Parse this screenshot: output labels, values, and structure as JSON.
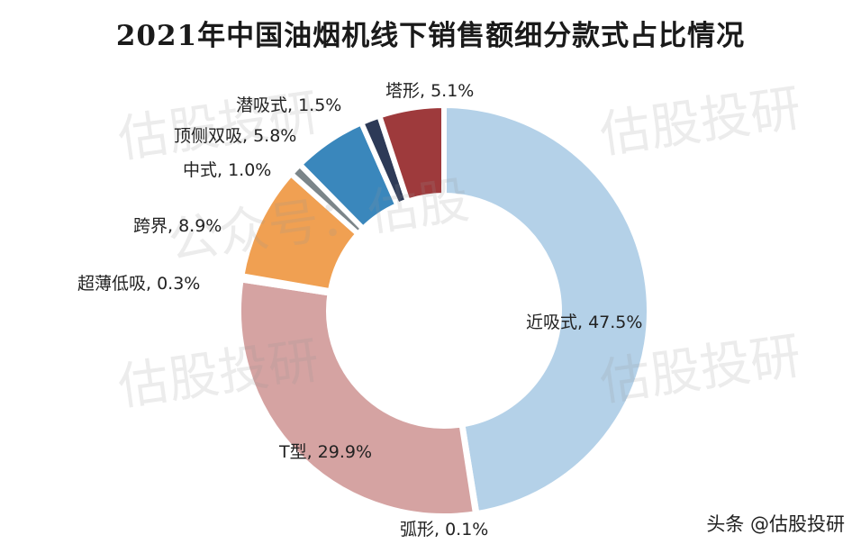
{
  "title": "2021年中国油烟机线下销售额细分款式占比情况",
  "credit": "头条 @估股投研",
  "watermarks": [
    "估股投研",
    "估股投研",
    "估股投研",
    "估股投研",
    "公众号：估股"
  ],
  "labels": {
    "l0": "近吸式, 47.5%",
    "l1": "弧形, 0.1%",
    "l2": "T型, 29.9%",
    "l3": "超薄低吸, 0.3%",
    "l4": "跨界, 8.9%",
    "l5": "中式, 1.0%",
    "l6": "顶侧双吸, 5.8%",
    "l7": "潜吸式, 1.5%",
    "l8": "塔形, 5.1%"
  },
  "chart_data": {
    "type": "pie",
    "subtype": "donut",
    "title": "2021年中国油烟机线下销售额细分款式占比情况",
    "categories": [
      "近吸式",
      "弧形",
      "T型",
      "超薄低吸",
      "跨界",
      "中式",
      "顶侧双吸",
      "潜吸式",
      "塔形"
    ],
    "values": [
      47.5,
      0.1,
      29.9,
      0.3,
      8.9,
      1.0,
      5.8,
      1.5,
      5.1
    ],
    "unit": "%",
    "colors": [
      "#b4d1e8",
      "#3f4d6e",
      "#d5a3a2",
      "#6ba3b5",
      "#f0a052",
      "#7b8589",
      "#3a87bc",
      "#2d3a57",
      "#9e3a3c"
    ],
    "start_angle": "12 o'clock, clockwise",
    "legend": "none (data labels)"
  }
}
